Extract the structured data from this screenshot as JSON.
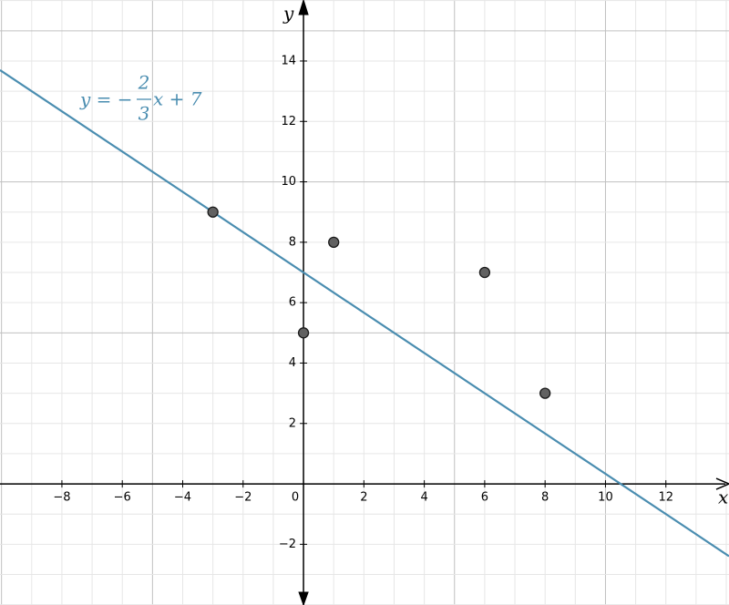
{
  "chart_data": {
    "type": "scatter",
    "x_label": "x",
    "y_label": "y",
    "xlim": [
      -10.05,
      14.09
    ],
    "ylim": [
      -4.01,
      16.02
    ],
    "xticks": [
      {
        "value": -8,
        "label": "−8"
      },
      {
        "value": -6,
        "label": "−6"
      },
      {
        "value": -4,
        "label": "−4"
      },
      {
        "value": -2,
        "label": "−2"
      },
      0,
      2,
      4,
      6,
      8,
      10,
      12
    ],
    "yticks": [
      {
        "value": -2,
        "label": "−2"
      },
      2,
      4,
      6,
      8,
      10,
      12,
      14
    ],
    "grid": true,
    "minor_grid_step": 1,
    "major_grid_step": 5,
    "series": [
      {
        "color": "#616161",
        "x": [
          -3,
          0,
          1,
          6,
          8
        ],
        "values": [
          9,
          5,
          8,
          7,
          3
        ]
      }
    ],
    "line": {
      "color": "#4a8db0",
      "slope_num": -2,
      "slope_den": 3,
      "intercept": 7,
      "label_lhs": "y = −",
      "label_num": "2",
      "label_den": "3",
      "label_rhs": "x + 7"
    }
  }
}
